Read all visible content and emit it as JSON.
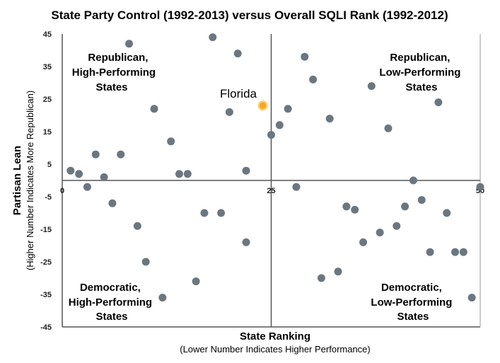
{
  "chart_data": {
    "type": "scatter",
    "title": "State Party Control (1992-2013) versus Overall SQLI Rank (1992-2012)",
    "xlabel": "State Ranking",
    "xlabel_sub": "(Lower Number Indicates Higher Performance)",
    "ylabel": "Partisan Lean",
    "ylabel_sub": "(Higher Number Indicates More Republican)",
    "xlim": [
      0,
      50
    ],
    "ylim": [
      -45,
      45
    ],
    "x_ticks": [
      "0",
      "25",
      "50"
    ],
    "y_ticks": [
      "45",
      "35",
      "25",
      "15",
      "5",
      "-5",
      "-15",
      "-25",
      "-35",
      "-45"
    ],
    "grid": false,
    "quadrant_labels": {
      "top_left": [
        "Republican,",
        "High-Performing",
        "States"
      ],
      "top_right": [
        "Republican,",
        "Low-Performing",
        "States"
      ],
      "bottom_left": [
        "Democratic,",
        "High-Performing",
        "States"
      ],
      "bottom_right": [
        "Democratic,",
        "Low-Performing",
        "States"
      ]
    },
    "highlight": {
      "label": "Florida",
      "x": 24,
      "y": 23
    },
    "point_color": "#6b7780",
    "highlight_color": "#f5a623",
    "points": [
      [
        1,
        3
      ],
      [
        2,
        2
      ],
      [
        3,
        -2
      ],
      [
        4,
        8
      ],
      [
        5,
        1
      ],
      [
        6,
        -7
      ],
      [
        7,
        8
      ],
      [
        8,
        42
      ],
      [
        9,
        -14
      ],
      [
        10,
        -25
      ],
      [
        11,
        22
      ],
      [
        12,
        -36
      ],
      [
        13,
        12
      ],
      [
        14,
        2
      ],
      [
        15,
        2
      ],
      [
        16,
        -31
      ],
      [
        17,
        -10
      ],
      [
        18,
        44
      ],
      [
        19,
        -10
      ],
      [
        20,
        21
      ],
      [
        21,
        39
      ],
      [
        22,
        3
      ],
      [
        22,
        -19
      ],
      [
        25,
        14
      ],
      [
        26,
        17
      ],
      [
        27,
        22
      ],
      [
        28,
        -2
      ],
      [
        29,
        38
      ],
      [
        30,
        31
      ],
      [
        31,
        -30
      ],
      [
        32,
        19
      ],
      [
        33,
        -28
      ],
      [
        34,
        -8
      ],
      [
        35,
        -9
      ],
      [
        36,
        -19
      ],
      [
        37,
        29
      ],
      [
        38,
        -16
      ],
      [
        39,
        16
      ],
      [
        40,
        -14
      ],
      [
        41,
        -8
      ],
      [
        42,
        0
      ],
      [
        43,
        -6
      ],
      [
        44,
        -22
      ],
      [
        45,
        24
      ],
      [
        46,
        -10
      ],
      [
        47,
        -22
      ],
      [
        48,
        -22
      ],
      [
        49,
        -36
      ],
      [
        50,
        -2
      ]
    ]
  }
}
